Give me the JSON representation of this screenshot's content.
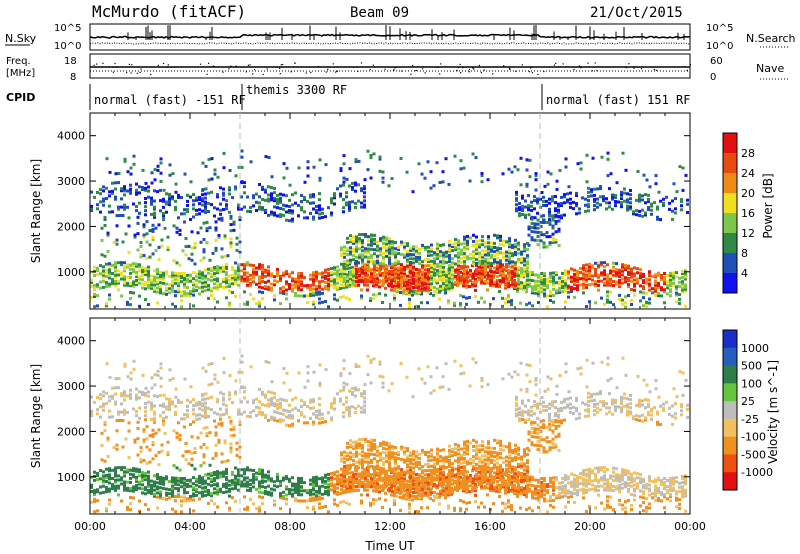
{
  "header": {
    "title": "McMurdo (fitACF)",
    "beam": "Beam 09",
    "date": "21/Oct/2015"
  },
  "top_panels": {
    "nsky_label": "N.Sky",
    "nsearch_label": "N.Search",
    "freq_label_1": "Freq.",
    "freq_label_2": "[MHz]",
    "nave_label": "Nave",
    "cpid_label": "CPID",
    "noise_ticks_left": [
      "10^5",
      "10^0"
    ],
    "noise_ticks_right": [
      "10^5",
      "10^0"
    ],
    "freq_ticks": [
      "18",
      "8"
    ],
    "nave_ticks": [
      "60",
      "0"
    ]
  },
  "cpid_segments": [
    {
      "label": "normal (fast) -151 RF",
      "start_h": 0.0
    },
    {
      "label": "themis 3300 RF",
      "start_h": 6.0
    },
    {
      "label": "normal (fast) 151 RF",
      "start_h": 18.0
    }
  ],
  "chart_data": [
    {
      "type": "heatmap",
      "name": "power",
      "xlabel": "",
      "ylabel": "Slant Range [km]",
      "xlim": [
        0,
        24
      ],
      "ylim": [
        180,
        4500
      ],
      "y_ticks": [
        "1000",
        "2000",
        "3000",
        "4000"
      ],
      "colorbar_label": "Power [dB]",
      "colorbar_ticks": [
        "28",
        "24",
        "20",
        "16",
        "12",
        "8",
        "4"
      ],
      "colors": [
        "#1010f0",
        "#1f4fb8",
        "#2f8a46",
        "#7cc84a",
        "#f0e020",
        "#f08a14",
        "#e84a10",
        "#e21010"
      ]
    },
    {
      "type": "heatmap",
      "name": "velocity",
      "xlabel": "Time UT",
      "ylabel": "Slant Range [km]",
      "xlim": [
        0,
        24
      ],
      "ylim": [
        180,
        4500
      ],
      "y_ticks": [
        "1000",
        "2000",
        "3000",
        "4000"
      ],
      "x_ticks": [
        "00:00",
        "04:00",
        "08:00",
        "12:00",
        "16:00",
        "20:00",
        "00:00"
      ],
      "colorbar_label": "Velocity [m s^-1]",
      "colorbar_ticks": [
        "1000",
        "500",
        "100",
        "25",
        "-25",
        "-100",
        "-500",
        "-1000"
      ],
      "colors": [
        "#1a2fc8",
        "#255ec0",
        "#2f7d4a",
        "#63c63c",
        "#bdbdbd",
        "#f2c060",
        "#f09020",
        "#f05010",
        "#e01010"
      ]
    }
  ]
}
